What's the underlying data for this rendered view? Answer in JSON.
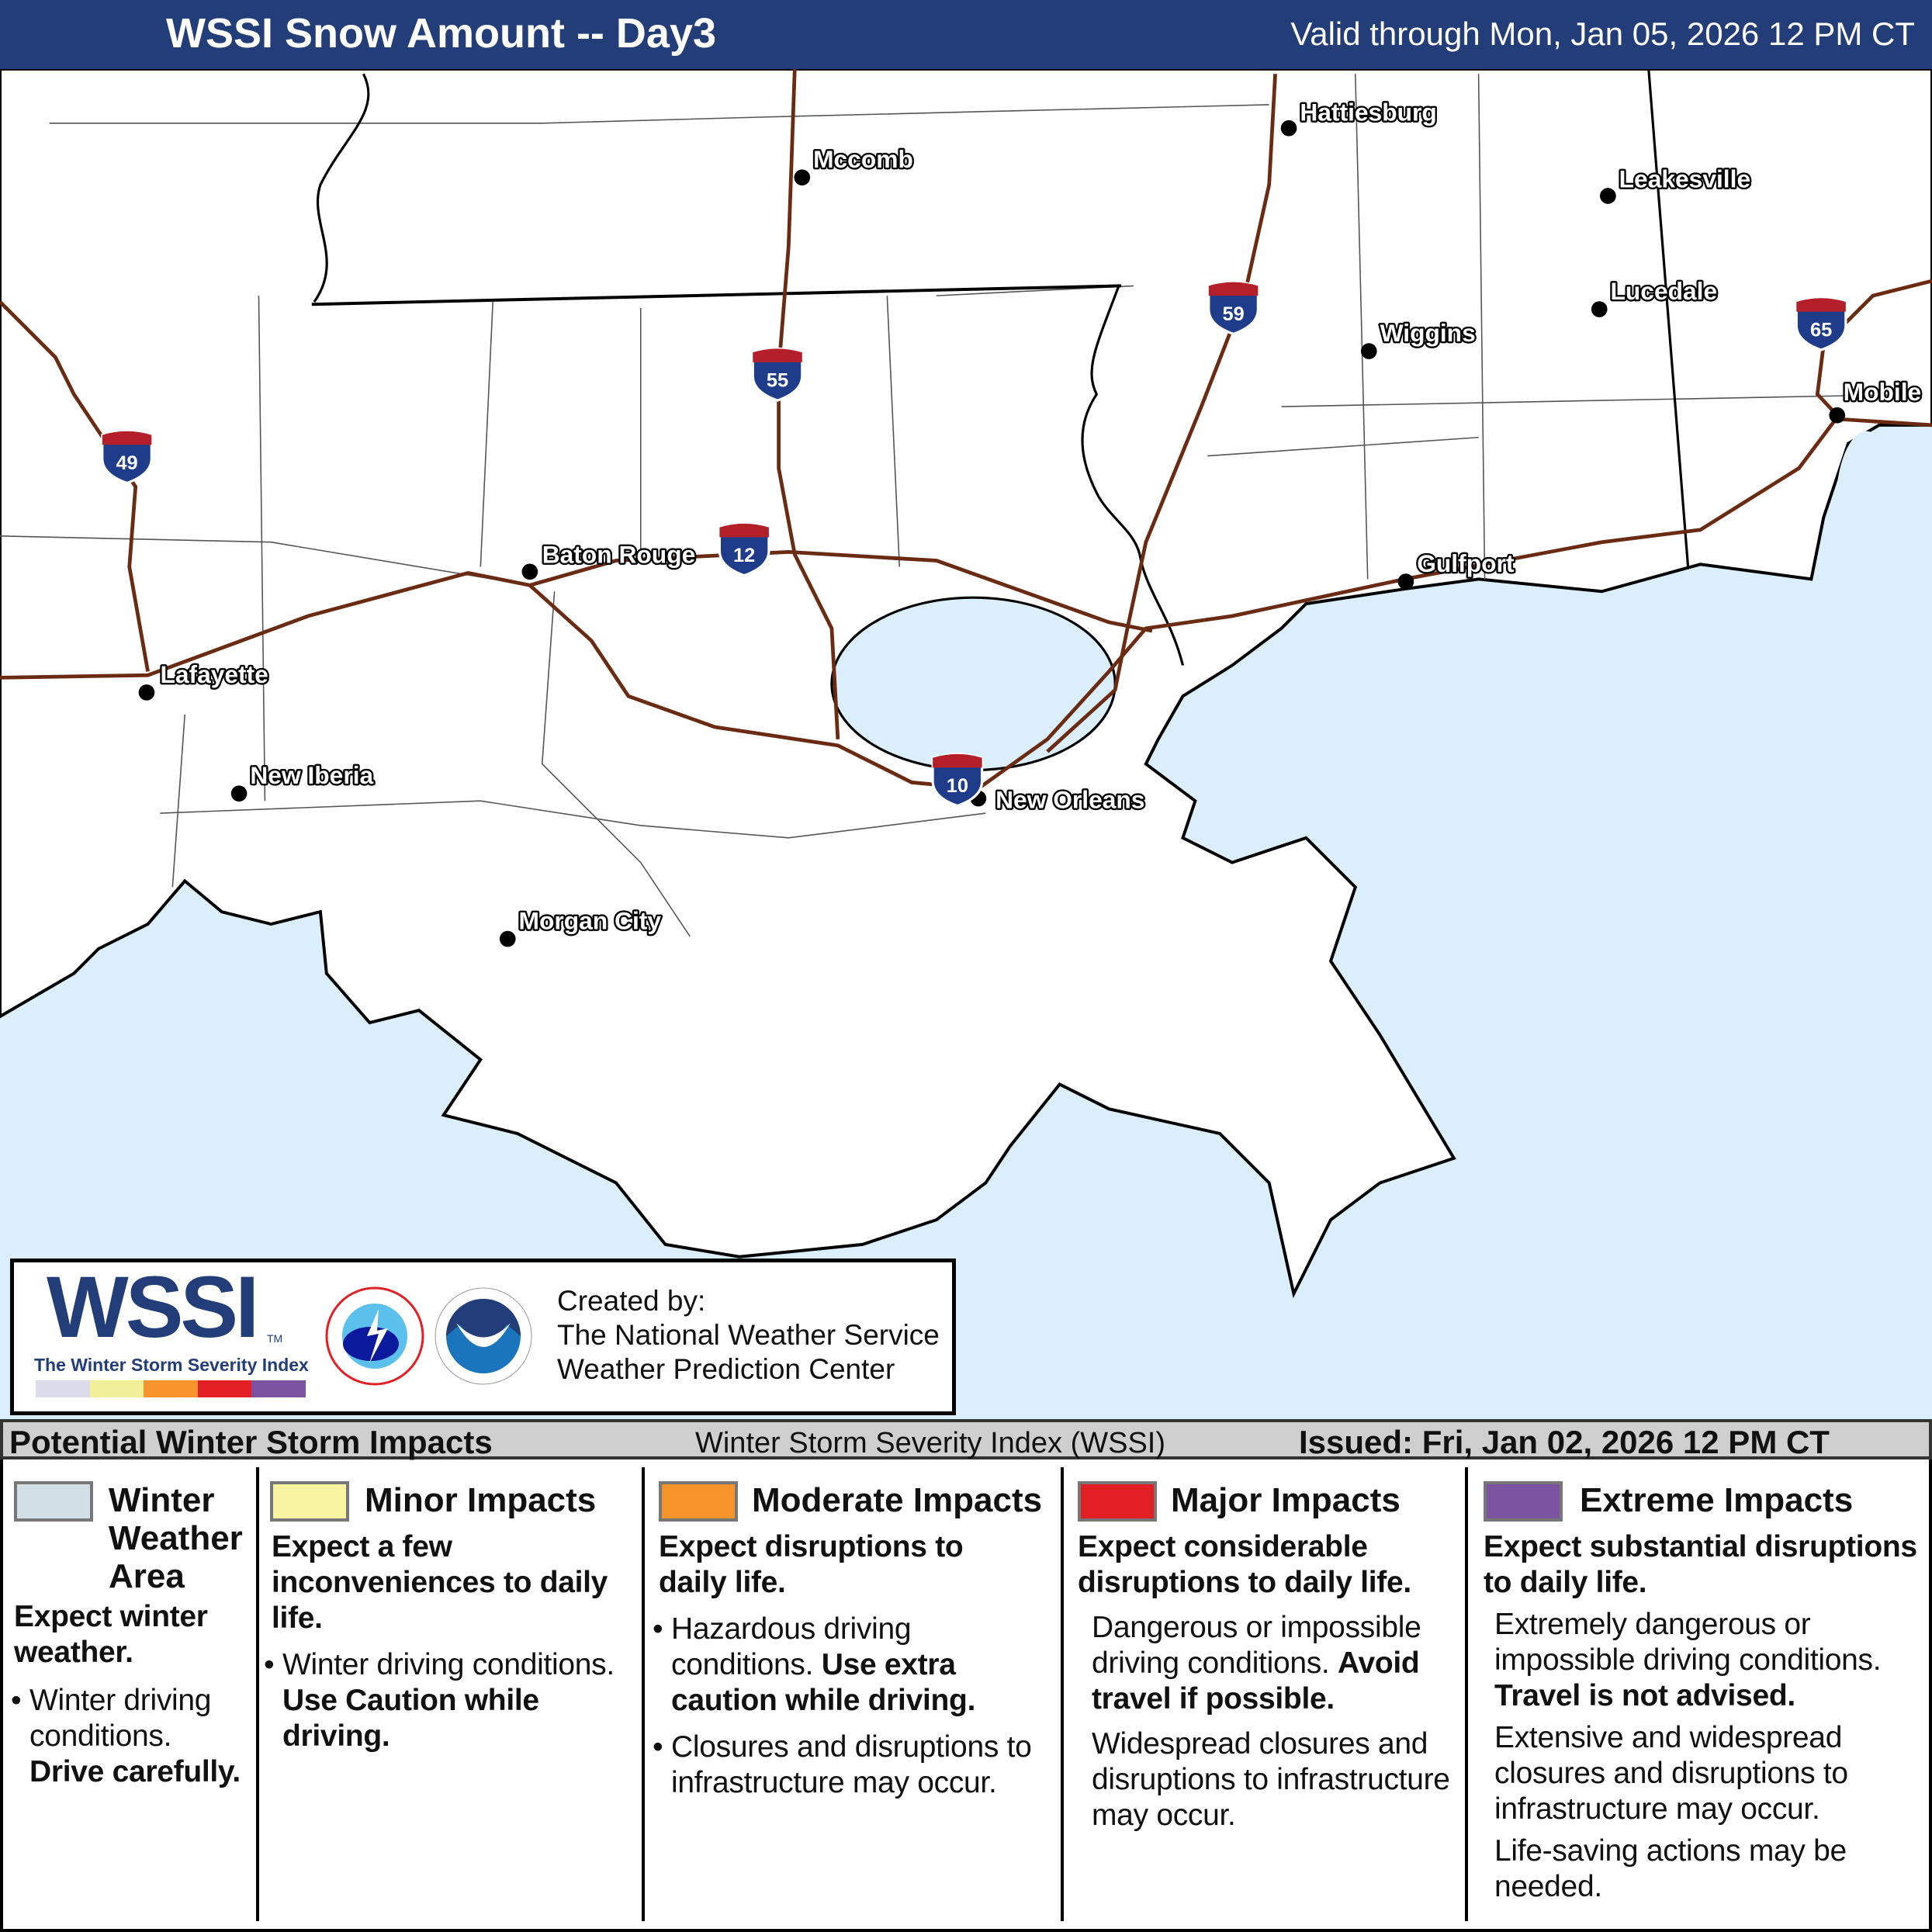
{
  "header": {
    "title": "WSSI Snow Amount -- Day3",
    "valid": "Valid through Mon, Jan 05, 2026 12 PM CT"
  },
  "map": {
    "colors": {
      "water": "#dbeefc",
      "land": "#ffffff",
      "interstate": "#6b2a12",
      "header": "#233d78"
    },
    "cities": [
      {
        "name": "Hattiesburg"
      },
      {
        "name": "Mccomb"
      },
      {
        "name": "Leakesville"
      },
      {
        "name": "Lucedale"
      },
      {
        "name": "Wiggins"
      },
      {
        "name": "Mobile"
      },
      {
        "name": "Baton Rouge"
      },
      {
        "name": "Gulfport"
      },
      {
        "name": "Lafayette"
      },
      {
        "name": "New Iberia"
      },
      {
        "name": "New Orleans"
      },
      {
        "name": "Morgan City"
      }
    ],
    "interstates": [
      "49",
      "55",
      "12",
      "59",
      "10",
      "65"
    ]
  },
  "logo": {
    "wssi": "WSSI",
    "tm": "TM",
    "subtitle": "The Winter Storm Severity Index",
    "scale_colors": [
      "#dcdbea",
      "#f1ef9a",
      "#f7952c",
      "#e31f26",
      "#7c53a1"
    ],
    "created_by": "Created by:",
    "org1": "The National Weather Service",
    "org2": "Weather Prediction Center"
  },
  "legend": {
    "title": "Potential Winter Storm Impacts",
    "subtitle": "Winter Storm Severity Index (WSSI)",
    "issued": "Issued: Fri, Jan 02, 2026 12 PM CT",
    "categories": [
      {
        "name": "Winter Weather Area",
        "color": "#d3dfe6",
        "headline": "Expect winter weather.",
        "b1": "Winter driving conditions.",
        "b1_bold": "Drive carefully."
      },
      {
        "name": "Minor Impacts",
        "color": "#f8f4a2",
        "headline": "Expect a few inconveniences to daily life.",
        "b1": "Winter driving conditions.",
        "b1_bold": "Use Caution while driving."
      },
      {
        "name": "Moderate Impacts",
        "color": "#f7952c",
        "headline": "Expect disruptions to daily life.",
        "b1": "Hazardous driving conditions.",
        "b1_bold": "Use extra caution while driving.",
        "b2": "Closures and disruptions to infrastructure may occur."
      },
      {
        "name": "Major Impacts",
        "color": "#e31f26",
        "headline": "Expect considerable disruptions to daily life.",
        "b1": "Dangerous or impossible driving conditions.",
        "b1_bold": "Avoid travel if possible.",
        "b2": "Widespread closures and disruptions to infrastructure may occur."
      },
      {
        "name": "Extreme Impacts",
        "color": "#7c53a1",
        "headline": "Expect substantial disruptions to daily life.",
        "b1": "Extremely dangerous or impossible driving conditions.",
        "b1_bold": "Travel is not advised.",
        "b2": "Extensive and widespread closures and disruptions to infrastructure may occur.",
        "b3": "Life-saving actions may be needed."
      }
    ]
  }
}
